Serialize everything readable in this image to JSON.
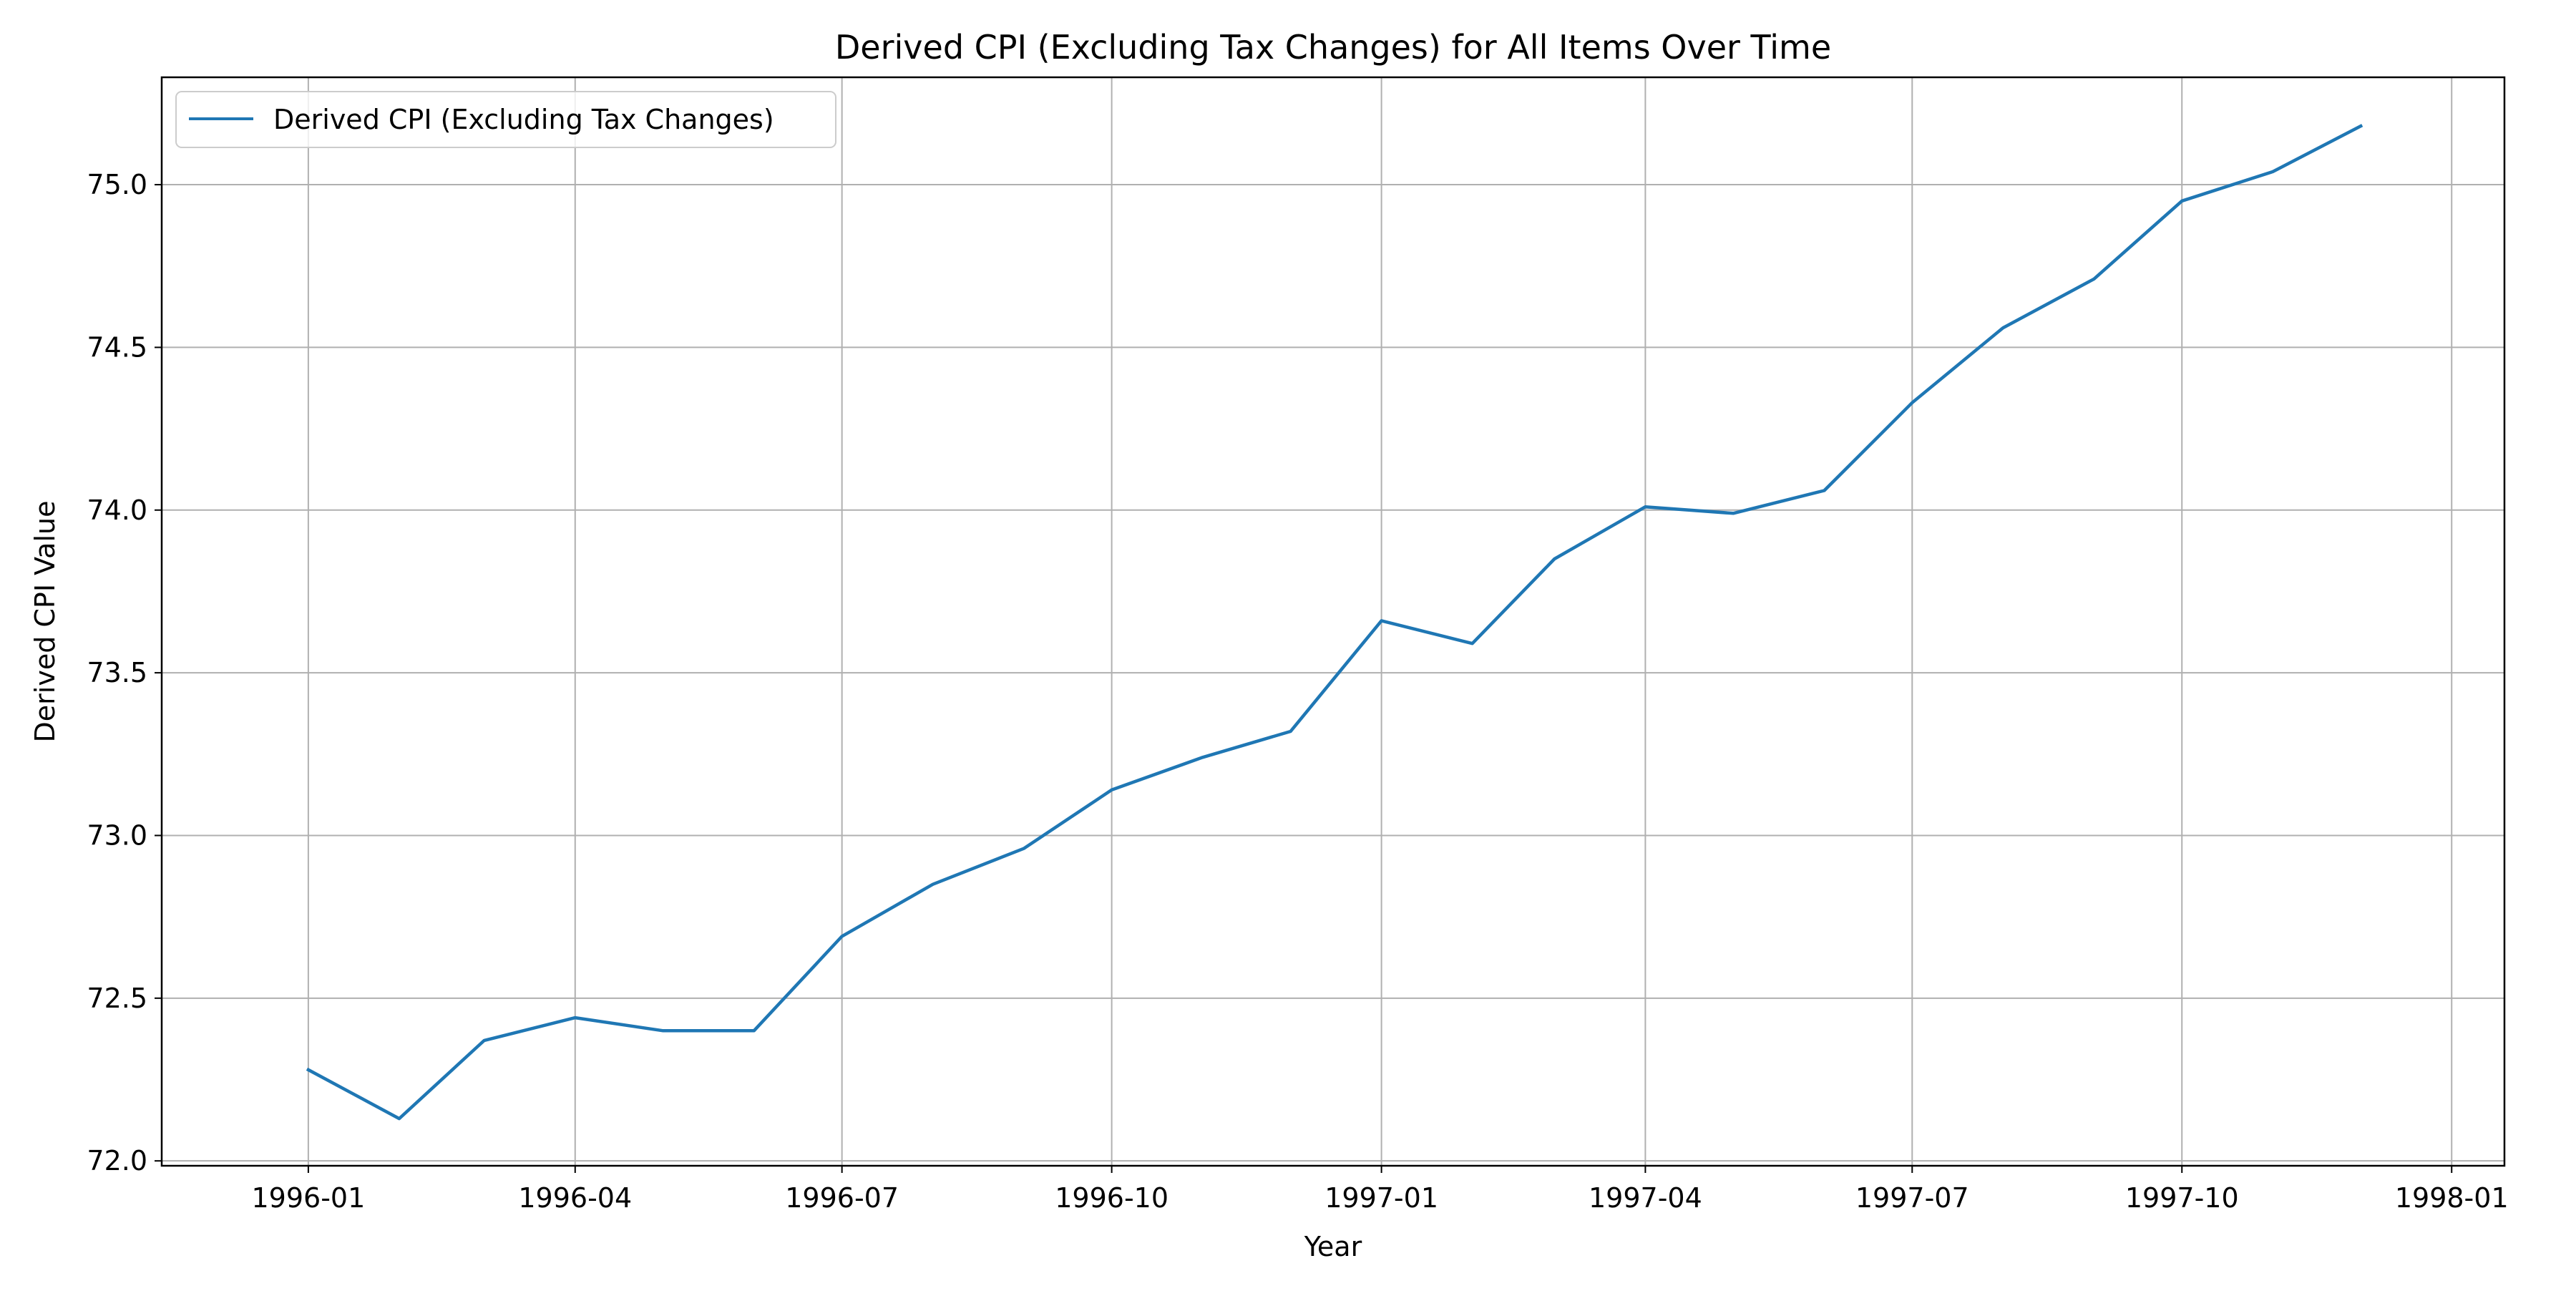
{
  "chart_data": {
    "type": "line",
    "title": "Derived CPI (Excluding Tax Changes) for All Items Over Time",
    "xlabel": "Year",
    "ylabel": "Derived CPI Value",
    "x": [
      "1996-01",
      "1996-02",
      "1996-03",
      "1996-04",
      "1996-05",
      "1996-06",
      "1996-07",
      "1996-08",
      "1996-09",
      "1996-10",
      "1996-11",
      "1996-12",
      "1997-01",
      "1997-02",
      "1997-03",
      "1997-04",
      "1997-05",
      "1997-06",
      "1997-07",
      "1997-08",
      "1997-09",
      "1997-10",
      "1997-11",
      "1997-12"
    ],
    "series": [
      {
        "name": "Derived CPI (Excluding Tax Changes)",
        "color": "#1f77b4",
        "values": [
          72.28,
          72.13,
          72.37,
          72.44,
          72.4,
          72.4,
          72.69,
          72.85,
          72.96,
          73.14,
          73.24,
          73.32,
          73.66,
          73.59,
          73.85,
          74.01,
          73.99,
          74.06,
          74.33,
          74.56,
          74.71,
          74.95,
          75.04,
          75.18
        ]
      }
    ],
    "x_ticks": [
      "1996-01",
      "1996-04",
      "1996-07",
      "1996-10",
      "1997-01",
      "1997-04",
      "1997-07",
      "1997-10",
      "1998-01"
    ],
    "y_ticks": [
      72.0,
      72.5,
      73.0,
      73.5,
      74.0,
      74.5,
      75.0
    ],
    "y_tick_labels": [
      "72.0",
      "72.5",
      "73.0",
      "73.5",
      "74.0",
      "74.5",
      "75.0"
    ],
    "xlim": [
      "1995-11-12",
      "1998-01-19"
    ],
    "ylim": [
      71.985,
      75.33
    ],
    "grid": true,
    "legend_position": "upper-left",
    "colors": {
      "grid": "#b0b0b0",
      "axes": "#000000"
    }
  }
}
